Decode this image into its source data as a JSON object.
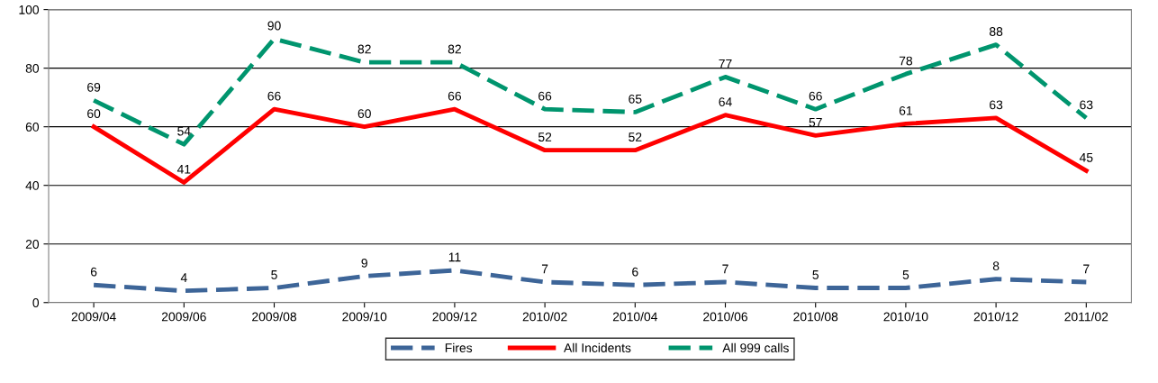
{
  "chart_data": {
    "type": "line",
    "categories": [
      "2009/04",
      "2009/06",
      "2009/08",
      "2009/10",
      "2009/12",
      "2010/02",
      "2010/04",
      "2010/06",
      "2010/08",
      "2010/10",
      "2010/12",
      "2011/02"
    ],
    "series": [
      {
        "name": "Fires",
        "color": "#3d6598",
        "line_style": "dashed",
        "values": [
          6,
          4,
          5,
          9,
          11,
          7,
          6,
          7,
          5,
          5,
          8,
          7
        ]
      },
      {
        "name": "All Incidents",
        "color": "#ff0000",
        "line_style": "solid",
        "values": [
          60,
          41,
          66,
          60,
          66,
          52,
          52,
          64,
          57,
          61,
          63,
          45
        ]
      },
      {
        "name": "All 999 calls",
        "color": "#00956e",
        "line_style": "dashed",
        "values": [
          69,
          54,
          90,
          82,
          82,
          66,
          65,
          77,
          66,
          78,
          88,
          63
        ]
      }
    ],
    "ylim": [
      0,
      100
    ],
    "yticks": [
      0,
      20,
      40,
      60,
      80,
      100
    ],
    "grid": "y",
    "legend": "bottom",
    "marker": "none",
    "data_labels": true
  }
}
